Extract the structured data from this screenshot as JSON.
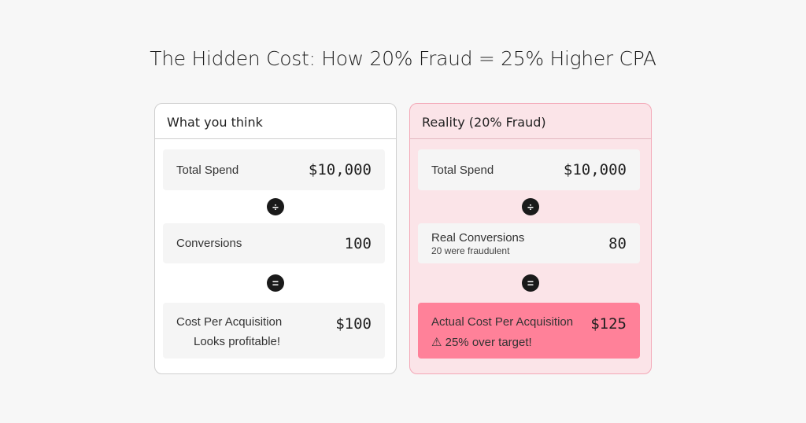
{
  "title": "The Hidden Cost: How 20% Fraud = 25% Higher CPA",
  "left": {
    "header": "What you think",
    "spend_label": "Total Spend",
    "spend_value": "$10,000",
    "divide_symbol": "÷",
    "conv_label": "Conversions",
    "conv_value": "100",
    "equals_symbol": "=",
    "cpa_label": "Cost Per Acquisition",
    "cpa_note": "Looks profitable!",
    "cpa_value": "$100"
  },
  "right": {
    "header": "Reality (20% Fraud)",
    "spend_label": "Total Spend",
    "spend_value": "$10,000",
    "divide_symbol": "÷",
    "conv_label": "Real Conversions",
    "conv_sub": "20 were fraudulent",
    "conv_value": "80",
    "equals_symbol": "=",
    "cpa_label": "Actual Cost Per Acquisition",
    "cpa_warning_icon": "⚠",
    "cpa_note": "25% over target!",
    "cpa_value": "$125"
  },
  "colors": {
    "background": "#f7f7f7",
    "reality_card": "#fbe4e8",
    "reality_border": "#f3a8b7",
    "highlight": "#ff8199"
  }
}
